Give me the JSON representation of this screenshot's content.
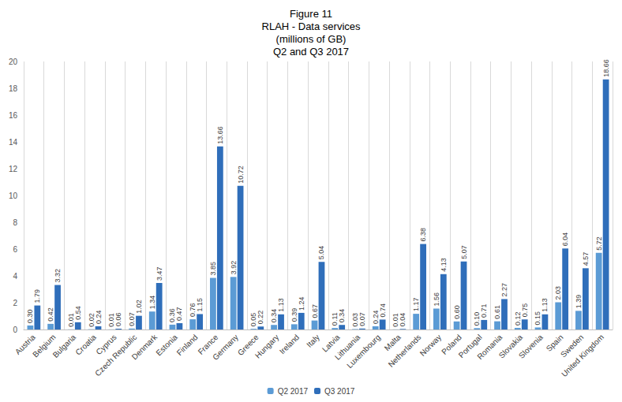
{
  "chart_data": {
    "type": "bar",
    "title": [
      "Figure 11",
      "RLAH - Data services",
      "(millions of GB)",
      "Q2 and Q3 2017"
    ],
    "categories": [
      "Austria",
      "Belgium",
      "Bulgaria",
      "Croatia",
      "Cyprus",
      "Czech Republic",
      "Denmark",
      "Estonia",
      "Finland",
      "France",
      "Germany",
      "Greece",
      "Hungary",
      "Ireland",
      "Italy",
      "Latvia",
      "Lithuania",
      "Luxembourg",
      "Malta",
      "Netherlands",
      "Norway",
      "Poland",
      "Portugal",
      "Romania",
      "Slovakia",
      "Slovenia",
      "Spain",
      "Sweden",
      "United Kingdom"
    ],
    "series": [
      {
        "name": "Q2 2017",
        "color": "#5B9BD5",
        "values": [
          0.3,
          0.42,
          0.01,
          0.02,
          0.01,
          0.07,
          1.34,
          0.36,
          0.76,
          3.85,
          3.92,
          0.05,
          0.34,
          0.39,
          0.67,
          0.11,
          0.03,
          0.24,
          0.01,
          1.17,
          1.56,
          0.6,
          0.1,
          0.61,
          0.12,
          0.15,
          2.03,
          1.39,
          5.72
        ],
        "value_labels": [
          "0.30",
          "0.42",
          "0.01",
          "0.02",
          "0.01",
          "0.07",
          "1.34",
          "0.36",
          "0.76",
          "3.85",
          "3.92",
          "0.05",
          "0.34",
          "0.39",
          "0.67",
          "0.11",
          "0.03",
          "0.24",
          "0.01",
          "1.17",
          "1.56",
          "0.60",
          "0.10",
          "0.61",
          "0.12",
          "0.15",
          "2.03",
          "1.39",
          "5.72"
        ]
      },
      {
        "name": "Q3 2017",
        "color": "#2F6EBA",
        "values": [
          1.79,
          3.32,
          0.54,
          0.24,
          0.06,
          1.02,
          3.47,
          0.47,
          1.15,
          13.66,
          10.72,
          0.22,
          1.13,
          1.24,
          5.04,
          0.34,
          0.07,
          0.74,
          0.04,
          6.38,
          4.13,
          5.07,
          0.71,
          2.27,
          0.75,
          1.13,
          6.04,
          4.57,
          18.66
        ],
        "value_labels": [
          "1.79",
          "3.32",
          "0.54",
          "0.24",
          "0.06",
          "1.02",
          "3.47",
          "0.47",
          "1.15",
          "13.66",
          "10.72",
          "0.22",
          "1.13",
          "1.24",
          "5.04",
          "0.34",
          "0.07",
          "0.74",
          "0.04",
          "6.38",
          "4.13",
          "5.07",
          "0.71",
          "2.27",
          "0.75",
          "1.13",
          "6.04",
          "4.57",
          "18.66"
        ]
      }
    ],
    "ylim": [
      0,
      20
    ],
    "yticks": [
      0,
      2,
      4,
      6,
      8,
      10,
      12,
      14,
      16,
      18,
      20
    ],
    "grid": true,
    "legend": "bottom",
    "data_labels": true
  }
}
